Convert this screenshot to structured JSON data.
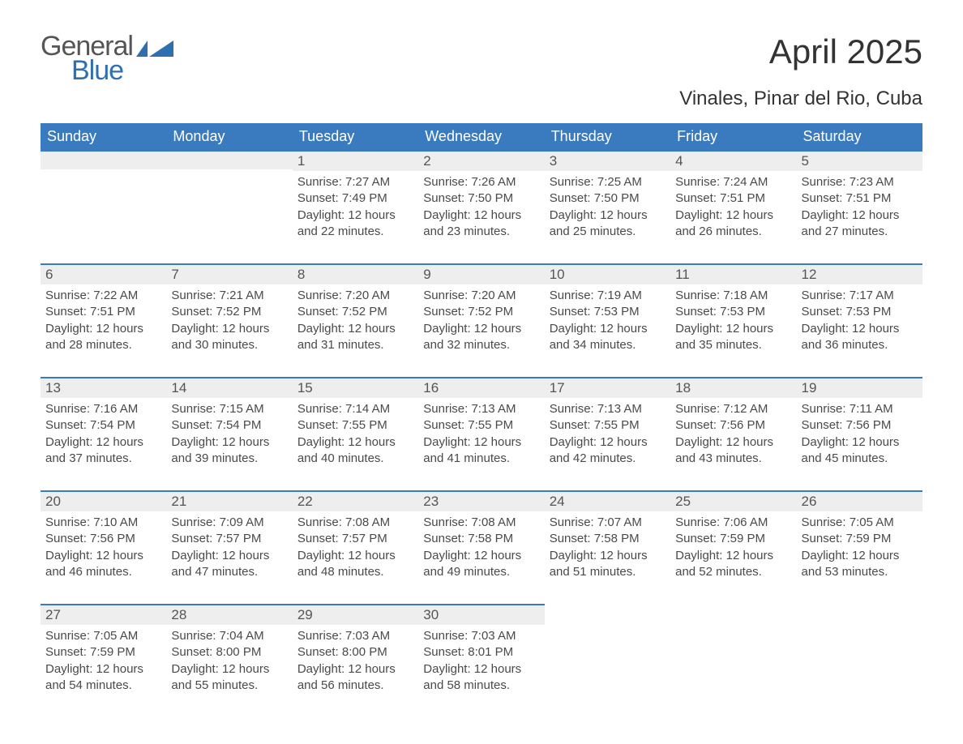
{
  "logo": {
    "text1": "General",
    "text2": "Blue",
    "accent_color": "#2f6fb0",
    "text_color": "#555555"
  },
  "title": "April 2025",
  "subtitle": "Vinales, Pinar del Rio, Cuba",
  "colors": {
    "header_bg": "#3a7bbf",
    "header_text": "#ffffff",
    "daynum_bg": "#eeeeee",
    "border_top": "#3a7bbf",
    "body_text": "#4a4a4a"
  },
  "weekdays": [
    "Sunday",
    "Monday",
    "Tuesday",
    "Wednesday",
    "Thursday",
    "Friday",
    "Saturday"
  ],
  "leading_blanks": 2,
  "days": [
    {
      "n": "1",
      "sunrise": "Sunrise: 7:27 AM",
      "sunset": "Sunset: 7:49 PM",
      "dl1": "Daylight: 12 hours",
      "dl2": "and 22 minutes."
    },
    {
      "n": "2",
      "sunrise": "Sunrise: 7:26 AM",
      "sunset": "Sunset: 7:50 PM",
      "dl1": "Daylight: 12 hours",
      "dl2": "and 23 minutes."
    },
    {
      "n": "3",
      "sunrise": "Sunrise: 7:25 AM",
      "sunset": "Sunset: 7:50 PM",
      "dl1": "Daylight: 12 hours",
      "dl2": "and 25 minutes."
    },
    {
      "n": "4",
      "sunrise": "Sunrise: 7:24 AM",
      "sunset": "Sunset: 7:51 PM",
      "dl1": "Daylight: 12 hours",
      "dl2": "and 26 minutes."
    },
    {
      "n": "5",
      "sunrise": "Sunrise: 7:23 AM",
      "sunset": "Sunset: 7:51 PM",
      "dl1": "Daylight: 12 hours",
      "dl2": "and 27 minutes."
    },
    {
      "n": "6",
      "sunrise": "Sunrise: 7:22 AM",
      "sunset": "Sunset: 7:51 PM",
      "dl1": "Daylight: 12 hours",
      "dl2": "and 28 minutes."
    },
    {
      "n": "7",
      "sunrise": "Sunrise: 7:21 AM",
      "sunset": "Sunset: 7:52 PM",
      "dl1": "Daylight: 12 hours",
      "dl2": "and 30 minutes."
    },
    {
      "n": "8",
      "sunrise": "Sunrise: 7:20 AM",
      "sunset": "Sunset: 7:52 PM",
      "dl1": "Daylight: 12 hours",
      "dl2": "and 31 minutes."
    },
    {
      "n": "9",
      "sunrise": "Sunrise: 7:20 AM",
      "sunset": "Sunset: 7:52 PM",
      "dl1": "Daylight: 12 hours",
      "dl2": "and 32 minutes."
    },
    {
      "n": "10",
      "sunrise": "Sunrise: 7:19 AM",
      "sunset": "Sunset: 7:53 PM",
      "dl1": "Daylight: 12 hours",
      "dl2": "and 34 minutes."
    },
    {
      "n": "11",
      "sunrise": "Sunrise: 7:18 AM",
      "sunset": "Sunset: 7:53 PM",
      "dl1": "Daylight: 12 hours",
      "dl2": "and 35 minutes."
    },
    {
      "n": "12",
      "sunrise": "Sunrise: 7:17 AM",
      "sunset": "Sunset: 7:53 PM",
      "dl1": "Daylight: 12 hours",
      "dl2": "and 36 minutes."
    },
    {
      "n": "13",
      "sunrise": "Sunrise: 7:16 AM",
      "sunset": "Sunset: 7:54 PM",
      "dl1": "Daylight: 12 hours",
      "dl2": "and 37 minutes."
    },
    {
      "n": "14",
      "sunrise": "Sunrise: 7:15 AM",
      "sunset": "Sunset: 7:54 PM",
      "dl1": "Daylight: 12 hours",
      "dl2": "and 39 minutes."
    },
    {
      "n": "15",
      "sunrise": "Sunrise: 7:14 AM",
      "sunset": "Sunset: 7:55 PM",
      "dl1": "Daylight: 12 hours",
      "dl2": "and 40 minutes."
    },
    {
      "n": "16",
      "sunrise": "Sunrise: 7:13 AM",
      "sunset": "Sunset: 7:55 PM",
      "dl1": "Daylight: 12 hours",
      "dl2": "and 41 minutes."
    },
    {
      "n": "17",
      "sunrise": "Sunrise: 7:13 AM",
      "sunset": "Sunset: 7:55 PM",
      "dl1": "Daylight: 12 hours",
      "dl2": "and 42 minutes."
    },
    {
      "n": "18",
      "sunrise": "Sunrise: 7:12 AM",
      "sunset": "Sunset: 7:56 PM",
      "dl1": "Daylight: 12 hours",
      "dl2": "and 43 minutes."
    },
    {
      "n": "19",
      "sunrise": "Sunrise: 7:11 AM",
      "sunset": "Sunset: 7:56 PM",
      "dl1": "Daylight: 12 hours",
      "dl2": "and 45 minutes."
    },
    {
      "n": "20",
      "sunrise": "Sunrise: 7:10 AM",
      "sunset": "Sunset: 7:56 PM",
      "dl1": "Daylight: 12 hours",
      "dl2": "and 46 minutes."
    },
    {
      "n": "21",
      "sunrise": "Sunrise: 7:09 AM",
      "sunset": "Sunset: 7:57 PM",
      "dl1": "Daylight: 12 hours",
      "dl2": "and 47 minutes."
    },
    {
      "n": "22",
      "sunrise": "Sunrise: 7:08 AM",
      "sunset": "Sunset: 7:57 PM",
      "dl1": "Daylight: 12 hours",
      "dl2": "and 48 minutes."
    },
    {
      "n": "23",
      "sunrise": "Sunrise: 7:08 AM",
      "sunset": "Sunset: 7:58 PM",
      "dl1": "Daylight: 12 hours",
      "dl2": "and 49 minutes."
    },
    {
      "n": "24",
      "sunrise": "Sunrise: 7:07 AM",
      "sunset": "Sunset: 7:58 PM",
      "dl1": "Daylight: 12 hours",
      "dl2": "and 51 minutes."
    },
    {
      "n": "25",
      "sunrise": "Sunrise: 7:06 AM",
      "sunset": "Sunset: 7:59 PM",
      "dl1": "Daylight: 12 hours",
      "dl2": "and 52 minutes."
    },
    {
      "n": "26",
      "sunrise": "Sunrise: 7:05 AM",
      "sunset": "Sunset: 7:59 PM",
      "dl1": "Daylight: 12 hours",
      "dl2": "and 53 minutes."
    },
    {
      "n": "27",
      "sunrise": "Sunrise: 7:05 AM",
      "sunset": "Sunset: 7:59 PM",
      "dl1": "Daylight: 12 hours",
      "dl2": "and 54 minutes."
    },
    {
      "n": "28",
      "sunrise": "Sunrise: 7:04 AM",
      "sunset": "Sunset: 8:00 PM",
      "dl1": "Daylight: 12 hours",
      "dl2": "and 55 minutes."
    },
    {
      "n": "29",
      "sunrise": "Sunrise: 7:03 AM",
      "sunset": "Sunset: 8:00 PM",
      "dl1": "Daylight: 12 hours",
      "dl2": "and 56 minutes."
    },
    {
      "n": "30",
      "sunrise": "Sunrise: 7:03 AM",
      "sunset": "Sunset: 8:01 PM",
      "dl1": "Daylight: 12 hours",
      "dl2": "and 58 minutes."
    }
  ]
}
